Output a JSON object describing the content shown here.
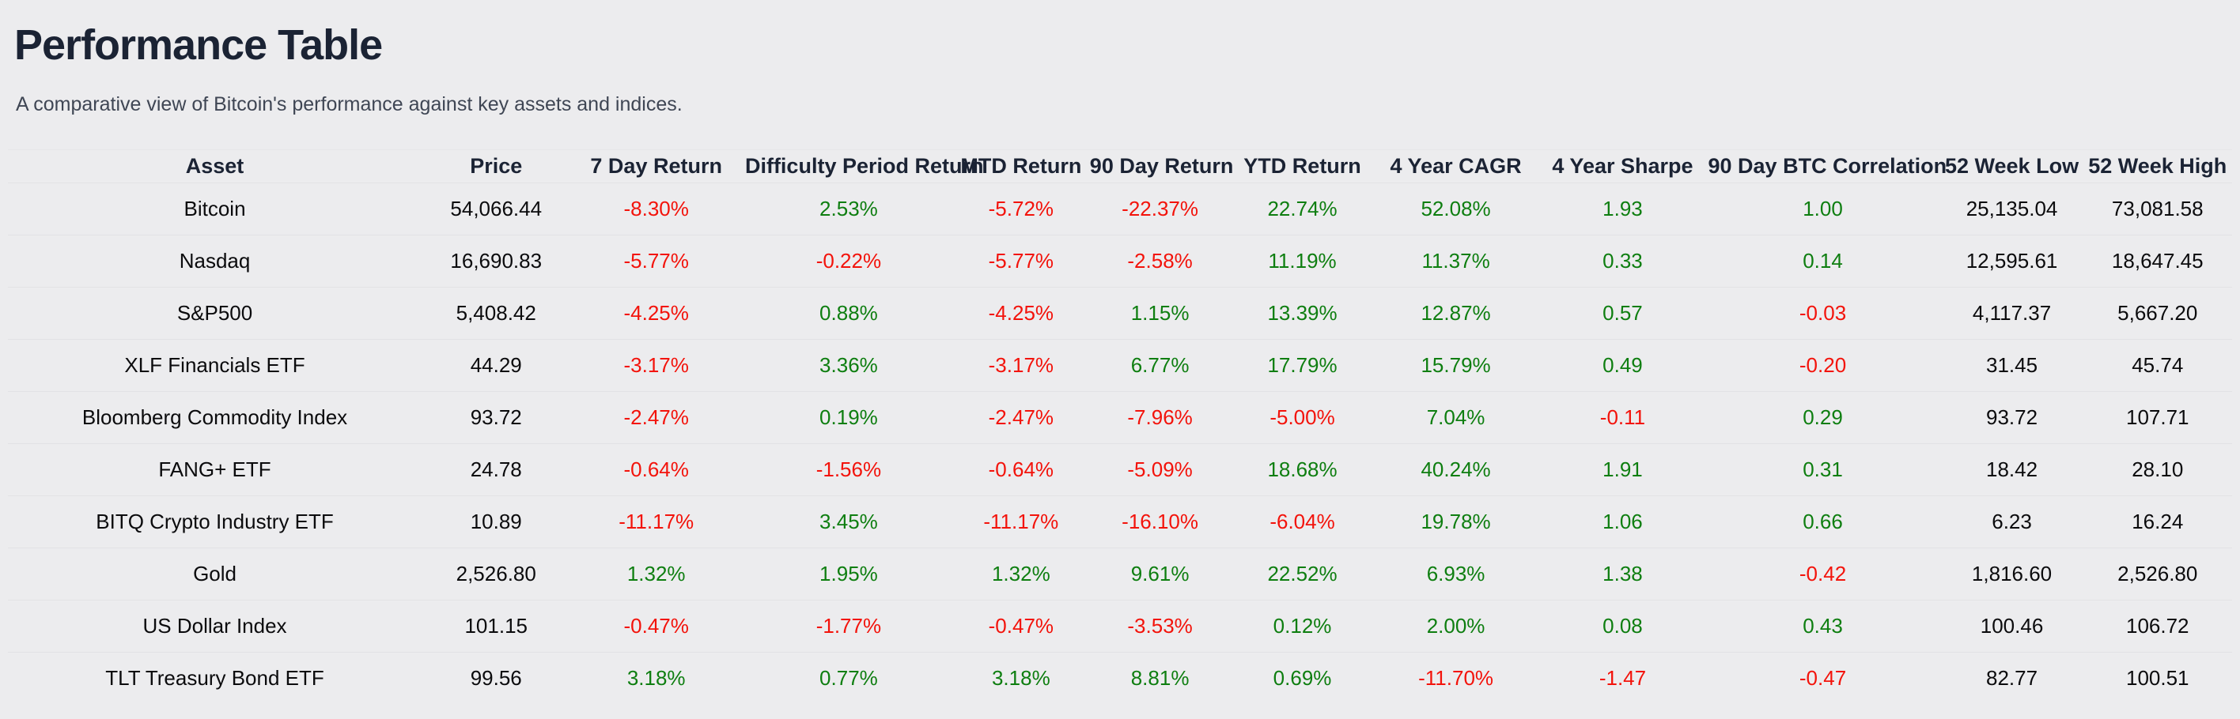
{
  "header": {
    "title": "Performance Table",
    "subtitle": "A comparative view of Bitcoin's performance against key assets and indices."
  },
  "colors": {
    "background": "#ececee",
    "heading": "#1b2334",
    "subtitle_text": "#3f4654",
    "value_text": "#0b0b0d",
    "positive": "#0e7e10",
    "negative": "#f3130b"
  },
  "table": {
    "columns": [
      "Asset",
      "Price",
      "7 Day Return",
      "Difficulty Period Return",
      "MTD Return",
      "90 Day Return",
      "YTD Return",
      "4 Year CAGR",
      "4 Year Sharpe",
      "90 Day BTC Correlation",
      "52 Week Low",
      "52 Week High"
    ],
    "rows": [
      {
        "cells": [
          {
            "v": "Bitcoin",
            "t": "plain"
          },
          {
            "v": "54,066.44",
            "t": "plain"
          },
          {
            "v": "-8.30%",
            "t": "neg"
          },
          {
            "v": "2.53%",
            "t": "pos"
          },
          {
            "v": "-5.72%",
            "t": "neg"
          },
          {
            "v": "-22.37%",
            "t": "neg"
          },
          {
            "v": "22.74%",
            "t": "pos"
          },
          {
            "v": "52.08%",
            "t": "pos"
          },
          {
            "v": "1.93",
            "t": "pos"
          },
          {
            "v": "1.00",
            "t": "pos"
          },
          {
            "v": "25,135.04",
            "t": "plain"
          },
          {
            "v": "73,081.58",
            "t": "plain"
          }
        ]
      },
      {
        "cells": [
          {
            "v": "Nasdaq",
            "t": "plain"
          },
          {
            "v": "16,690.83",
            "t": "plain"
          },
          {
            "v": "-5.77%",
            "t": "neg"
          },
          {
            "v": "-0.22%",
            "t": "neg"
          },
          {
            "v": "-5.77%",
            "t": "neg"
          },
          {
            "v": "-2.58%",
            "t": "neg"
          },
          {
            "v": "11.19%",
            "t": "pos"
          },
          {
            "v": "11.37%",
            "t": "pos"
          },
          {
            "v": "0.33",
            "t": "pos"
          },
          {
            "v": "0.14",
            "t": "pos"
          },
          {
            "v": "12,595.61",
            "t": "plain"
          },
          {
            "v": "18,647.45",
            "t": "plain"
          }
        ]
      },
      {
        "cells": [
          {
            "v": "S&P500",
            "t": "plain"
          },
          {
            "v": "5,408.42",
            "t": "plain"
          },
          {
            "v": "-4.25%",
            "t": "neg"
          },
          {
            "v": "0.88%",
            "t": "pos"
          },
          {
            "v": "-4.25%",
            "t": "neg"
          },
          {
            "v": "1.15%",
            "t": "pos"
          },
          {
            "v": "13.39%",
            "t": "pos"
          },
          {
            "v": "12.87%",
            "t": "pos"
          },
          {
            "v": "0.57",
            "t": "pos"
          },
          {
            "v": "-0.03",
            "t": "neg"
          },
          {
            "v": "4,117.37",
            "t": "plain"
          },
          {
            "v": "5,667.20",
            "t": "plain"
          }
        ]
      },
      {
        "cells": [
          {
            "v": "XLF Financials ETF",
            "t": "plain"
          },
          {
            "v": "44.29",
            "t": "plain"
          },
          {
            "v": "-3.17%",
            "t": "neg"
          },
          {
            "v": "3.36%",
            "t": "pos"
          },
          {
            "v": "-3.17%",
            "t": "neg"
          },
          {
            "v": "6.77%",
            "t": "pos"
          },
          {
            "v": "17.79%",
            "t": "pos"
          },
          {
            "v": "15.79%",
            "t": "pos"
          },
          {
            "v": "0.49",
            "t": "pos"
          },
          {
            "v": "-0.20",
            "t": "neg"
          },
          {
            "v": "31.45",
            "t": "plain"
          },
          {
            "v": "45.74",
            "t": "plain"
          }
        ]
      },
      {
        "cells": [
          {
            "v": "Bloomberg Commodity Index",
            "t": "plain"
          },
          {
            "v": "93.72",
            "t": "plain"
          },
          {
            "v": "-2.47%",
            "t": "neg"
          },
          {
            "v": "0.19%",
            "t": "pos"
          },
          {
            "v": "-2.47%",
            "t": "neg"
          },
          {
            "v": "-7.96%",
            "t": "neg"
          },
          {
            "v": "-5.00%",
            "t": "neg"
          },
          {
            "v": "7.04%",
            "t": "pos"
          },
          {
            "v": "-0.11",
            "t": "neg"
          },
          {
            "v": "0.29",
            "t": "pos"
          },
          {
            "v": "93.72",
            "t": "plain"
          },
          {
            "v": "107.71",
            "t": "plain"
          }
        ]
      },
      {
        "cells": [
          {
            "v": "FANG+ ETF",
            "t": "plain"
          },
          {
            "v": "24.78",
            "t": "plain"
          },
          {
            "v": "-0.64%",
            "t": "neg"
          },
          {
            "v": "-1.56%",
            "t": "neg"
          },
          {
            "v": "-0.64%",
            "t": "neg"
          },
          {
            "v": "-5.09%",
            "t": "neg"
          },
          {
            "v": "18.68%",
            "t": "pos"
          },
          {
            "v": "40.24%",
            "t": "pos"
          },
          {
            "v": "1.91",
            "t": "pos"
          },
          {
            "v": "0.31",
            "t": "pos"
          },
          {
            "v": "18.42",
            "t": "plain"
          },
          {
            "v": "28.10",
            "t": "plain"
          }
        ]
      },
      {
        "cells": [
          {
            "v": "BITQ Crypto Industry ETF",
            "t": "plain"
          },
          {
            "v": "10.89",
            "t": "plain"
          },
          {
            "v": "-11.17%",
            "t": "neg"
          },
          {
            "v": "3.45%",
            "t": "pos"
          },
          {
            "v": "-11.17%",
            "t": "neg"
          },
          {
            "v": "-16.10%",
            "t": "neg"
          },
          {
            "v": "-6.04%",
            "t": "neg"
          },
          {
            "v": "19.78%",
            "t": "pos"
          },
          {
            "v": "1.06",
            "t": "pos"
          },
          {
            "v": "0.66",
            "t": "pos"
          },
          {
            "v": "6.23",
            "t": "plain"
          },
          {
            "v": "16.24",
            "t": "plain"
          }
        ]
      },
      {
        "cells": [
          {
            "v": "Gold",
            "t": "plain"
          },
          {
            "v": "2,526.80",
            "t": "plain"
          },
          {
            "v": "1.32%",
            "t": "pos"
          },
          {
            "v": "1.95%",
            "t": "pos"
          },
          {
            "v": "1.32%",
            "t": "pos"
          },
          {
            "v": "9.61%",
            "t": "pos"
          },
          {
            "v": "22.52%",
            "t": "pos"
          },
          {
            "v": "6.93%",
            "t": "pos"
          },
          {
            "v": "1.38",
            "t": "pos"
          },
          {
            "v": "-0.42",
            "t": "neg"
          },
          {
            "v": "1,816.60",
            "t": "plain"
          },
          {
            "v": "2,526.80",
            "t": "plain"
          }
        ]
      },
      {
        "cells": [
          {
            "v": "US Dollar Index",
            "t": "plain"
          },
          {
            "v": "101.15",
            "t": "plain"
          },
          {
            "v": "-0.47%",
            "t": "neg"
          },
          {
            "v": "-1.77%",
            "t": "neg"
          },
          {
            "v": "-0.47%",
            "t": "neg"
          },
          {
            "v": "-3.53%",
            "t": "neg"
          },
          {
            "v": "0.12%",
            "t": "pos"
          },
          {
            "v": "2.00%",
            "t": "pos"
          },
          {
            "v": "0.08",
            "t": "pos"
          },
          {
            "v": "0.43",
            "t": "pos"
          },
          {
            "v": "100.46",
            "t": "plain"
          },
          {
            "v": "106.72",
            "t": "plain"
          }
        ]
      },
      {
        "cells": [
          {
            "v": "TLT Treasury Bond ETF",
            "t": "plain"
          },
          {
            "v": "99.56",
            "t": "plain"
          },
          {
            "v": "3.18%",
            "t": "pos"
          },
          {
            "v": "0.77%",
            "t": "pos"
          },
          {
            "v": "3.18%",
            "t": "pos"
          },
          {
            "v": "8.81%",
            "t": "pos"
          },
          {
            "v": "0.69%",
            "t": "pos"
          },
          {
            "v": "-11.70%",
            "t": "neg"
          },
          {
            "v": "-1.47",
            "t": "neg"
          },
          {
            "v": "-0.47",
            "t": "neg"
          },
          {
            "v": "82.77",
            "t": "plain"
          },
          {
            "v": "100.51",
            "t": "plain"
          }
        ]
      }
    ]
  }
}
